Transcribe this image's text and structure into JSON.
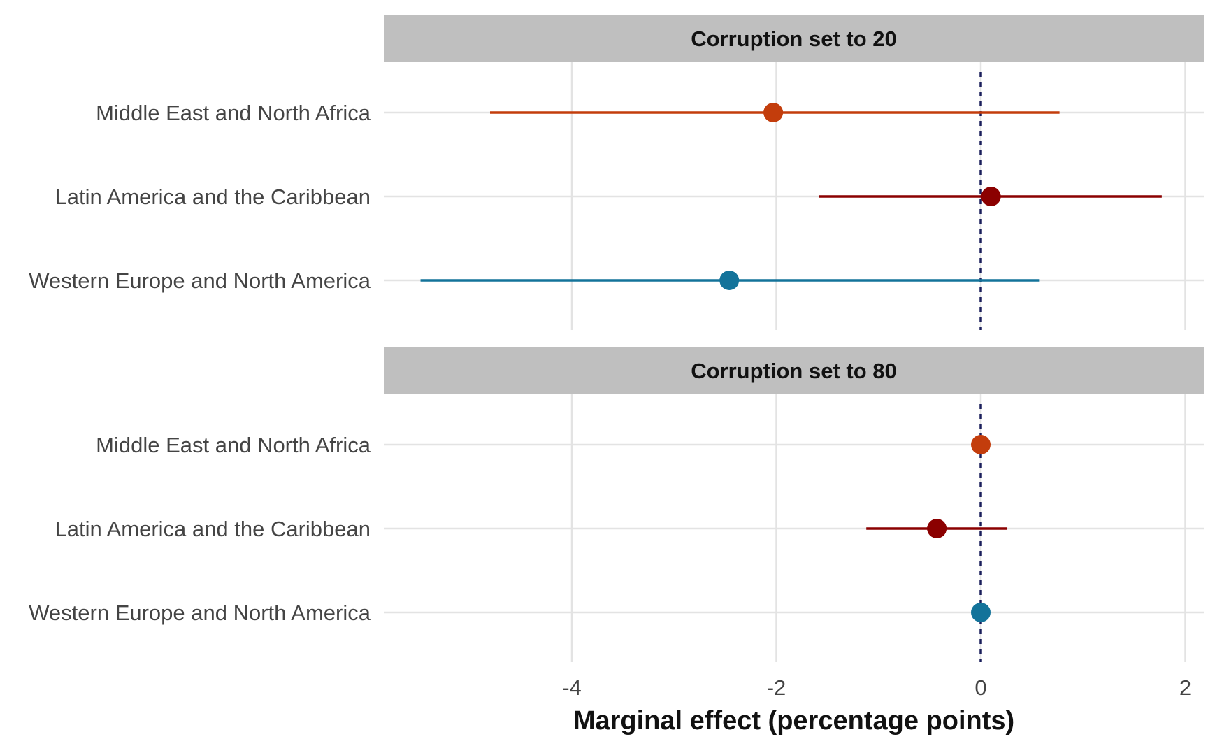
{
  "chart_data": {
    "type": "scatter",
    "subtype": "pointrange-facets",
    "xlabel": "Marginal effect (percentage points)",
    "xlim": [
      -5.6,
      2.2
    ],
    "x_ticks": [
      -4,
      -2,
      0,
      2
    ],
    "x_tick_labels": [
      "-4",
      "-2",
      "0",
      "2"
    ],
    "reference_line": {
      "x": 0,
      "style": "dotted",
      "color": "#1a1f5c"
    },
    "grid": true,
    "categories": [
      "Middle East and North Africa",
      "Latin America and the Caribbean",
      "Western Europe and North America"
    ],
    "category_colors": [
      "#c33d0c",
      "#8b0000",
      "#13739a"
    ],
    "facets": [
      {
        "title": "Corruption set to 20",
        "points": [
          {
            "category": "Middle East and North Africa",
            "estimate": -2.03,
            "low": -4.8,
            "high": 0.77
          },
          {
            "category": "Latin America and the Caribbean",
            "estimate": 0.1,
            "low": -1.58,
            "high": 1.77
          },
          {
            "category": "Western Europe and North America",
            "estimate": -2.46,
            "low": -5.48,
            "high": 0.57
          }
        ]
      },
      {
        "title": "Corruption set to 80",
        "points": [
          {
            "category": "Middle East and North Africa",
            "estimate": 0.0,
            "low": 0.0,
            "high": 0.0
          },
          {
            "category": "Latin America and the Caribbean",
            "estimate": -0.43,
            "low": -1.12,
            "high": 0.26
          },
          {
            "category": "Western Europe and North America",
            "estimate": 0.0,
            "low": 0.0,
            "high": 0.0
          }
        ]
      }
    ]
  }
}
